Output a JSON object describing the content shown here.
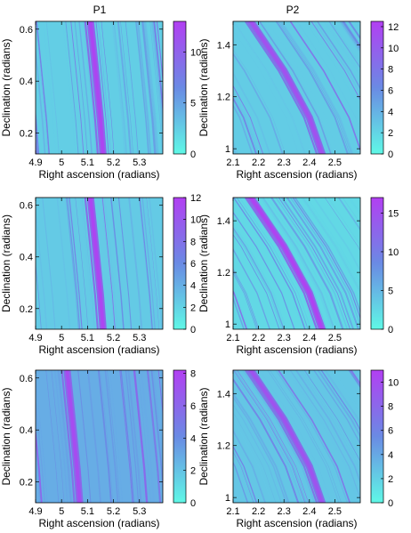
{
  "figure": {
    "column_titles": [
      "P1",
      "P2"
    ]
  },
  "colormap": {
    "low": "#5ff8e6",
    "mid": "#6a8ae4",
    "high": "#b23ff2"
  },
  "chart_data": [
    {
      "id": "r1c1",
      "type": "heatmap",
      "column_title": "P1",
      "xlabel": "Right ascension (radians)",
      "ylabel": "Declination (radians)",
      "xlim": [
        4.9,
        5.39
      ],
      "ylim": [
        0.12,
        0.63
      ],
      "xticks": [
        4.9,
        5.0,
        5.1,
        5.2,
        5.3
      ],
      "xtick_labels": [
        "4.9",
        "5",
        "5.1",
        "5.2",
        "5.3"
      ],
      "yticks": [
        0.2,
        0.4,
        0.6
      ],
      "ytick_labels": [
        "0.2",
        "0.4",
        "0.6"
      ],
      "colorbar": {
        "range": [
          0,
          13
        ],
        "ticks": [
          0,
          5,
          10
        ],
        "tick_labels": [
          "0",
          "5",
          "10"
        ]
      },
      "peak_track": [
        [
          5.11,
          0.63
        ],
        [
          5.13,
          0.45
        ],
        [
          5.15,
          0.25
        ],
        [
          5.16,
          0.12
        ]
      ],
      "peak_value": 12.5,
      "background": 2.5
    },
    {
      "id": "r1c2",
      "type": "heatmap",
      "column_title": "P2",
      "xlabel": "Right ascension (radians)",
      "ylabel": "Declination (radians)",
      "xlim": [
        2.1,
        2.6
      ],
      "ylim": [
        0.98,
        1.49
      ],
      "xticks": [
        2.1,
        2.2,
        2.3,
        2.4,
        2.5
      ],
      "xtick_labels": [
        "2.1",
        "2.2",
        "2.3",
        "2.4",
        "2.5"
      ],
      "yticks": [
        1.0,
        1.2,
        1.4
      ],
      "ytick_labels": [
        "1",
        "1.2",
        "1.4"
      ],
      "colorbar": {
        "range": [
          0,
          12.5
        ],
        "ticks": [
          0,
          2,
          4,
          6,
          8,
          10,
          12
        ],
        "tick_labels": [
          "0",
          "2",
          "4",
          "6",
          "8",
          "10",
          "12"
        ]
      },
      "peak_track": [
        [
          2.16,
          1.49
        ],
        [
          2.3,
          1.3
        ],
        [
          2.4,
          1.12
        ],
        [
          2.45,
          0.98
        ]
      ],
      "peak_value": 11,
      "background": 2.5
    },
    {
      "id": "r2c1",
      "type": "heatmap",
      "column_title": "",
      "xlabel": "Right ascension (radians)",
      "ylabel": "Declination (radians)",
      "xlim": [
        4.9,
        5.39
      ],
      "ylim": [
        0.12,
        0.63
      ],
      "xticks": [
        4.9,
        5.0,
        5.1,
        5.2,
        5.3
      ],
      "xtick_labels": [
        "4.9",
        "5",
        "5.1",
        "5.2",
        "5.3"
      ],
      "yticks": [
        0.2,
        0.4,
        0.6
      ],
      "ytick_labels": [
        "0.2",
        "0.4",
        "0.6"
      ],
      "colorbar": {
        "range": [
          0,
          12
        ],
        "ticks": [
          0,
          2,
          4,
          6,
          8,
          10,
          12
        ],
        "tick_labels": [
          "0",
          "2",
          "4",
          "6",
          "8",
          "10",
          "12"
        ]
      },
      "peak_track": [
        [
          5.11,
          0.63
        ],
        [
          5.13,
          0.45
        ],
        [
          5.15,
          0.25
        ],
        [
          5.16,
          0.12
        ]
      ],
      "peak_value": 11.5,
      "background": 2.5
    },
    {
      "id": "r2c2",
      "type": "heatmap",
      "column_title": "",
      "xlabel": "Right ascension (radians)",
      "ylabel": "Declination (radians)",
      "xlim": [
        2.1,
        2.6
      ],
      "ylim": [
        0.98,
        1.49
      ],
      "xticks": [
        2.1,
        2.2,
        2.3,
        2.4,
        2.5
      ],
      "xtick_labels": [
        "2.1",
        "2.2",
        "2.3",
        "2.4",
        "2.5"
      ],
      "yticks": [
        1.0,
        1.2,
        1.4
      ],
      "ytick_labels": [
        "1",
        "1.2",
        "1.4"
      ],
      "colorbar": {
        "range": [
          0,
          17
        ],
        "ticks": [
          0,
          5,
          10,
          15
        ],
        "tick_labels": [
          "0",
          "5",
          "10",
          "15"
        ]
      },
      "peak_track": [
        [
          2.16,
          1.49
        ],
        [
          2.3,
          1.3
        ],
        [
          2.4,
          1.12
        ],
        [
          2.45,
          0.98
        ]
      ],
      "peak_value": 16.5,
      "background": 2.5
    },
    {
      "id": "r3c1",
      "type": "heatmap",
      "column_title": "",
      "xlabel": "Right ascension (radians)",
      "ylabel": "Declination (radians)",
      "xlim": [
        4.9,
        5.39
      ],
      "ylim": [
        0.12,
        0.63
      ],
      "xticks": [
        4.9,
        5.0,
        5.1,
        5.2,
        5.3
      ],
      "xtick_labels": [
        "4.9",
        "5",
        "5.1",
        "5.2",
        "5.3"
      ],
      "yticks": [
        0.2,
        0.4,
        0.6
      ],
      "ytick_labels": [
        "0.2",
        "0.4",
        "0.6"
      ],
      "colorbar": {
        "range": [
          0,
          8.2
        ],
        "ticks": [
          0,
          2,
          4,
          6,
          8
        ],
        "tick_labels": [
          "0",
          "2",
          "4",
          "6",
          "8"
        ]
      },
      "peak_track": [
        [
          5.02,
          0.63
        ],
        [
          5.04,
          0.45
        ],
        [
          5.06,
          0.25
        ],
        [
          5.07,
          0.12
        ]
      ],
      "peak_value": 7.5,
      "background": 2.8
    },
    {
      "id": "r3c2",
      "type": "heatmap",
      "column_title": "",
      "xlabel": "Right ascension (radians)",
      "ylabel": "Declination (radians)",
      "xlim": [
        2.1,
        2.6
      ],
      "ylim": [
        0.98,
        1.49
      ],
      "xticks": [
        2.1,
        2.2,
        2.3,
        2.4,
        2.5
      ],
      "xtick_labels": [
        "2.1",
        "2.2",
        "2.3",
        "2.4",
        "2.5"
      ],
      "yticks": [
        1.0,
        1.2,
        1.4
      ],
      "ytick_labels": [
        "1",
        "1.2",
        "1.4"
      ],
      "colorbar": {
        "range": [
          0,
          11
        ],
        "ticks": [
          0,
          2,
          4,
          6,
          8,
          10
        ],
        "tick_labels": [
          "0",
          "2",
          "4",
          "6",
          "8",
          "10"
        ]
      },
      "peak_track": [
        [
          2.16,
          1.49
        ],
        [
          2.3,
          1.3
        ],
        [
          2.4,
          1.12
        ],
        [
          2.45,
          0.98
        ]
      ],
      "peak_value": 9.5,
      "background": 2.5
    }
  ]
}
